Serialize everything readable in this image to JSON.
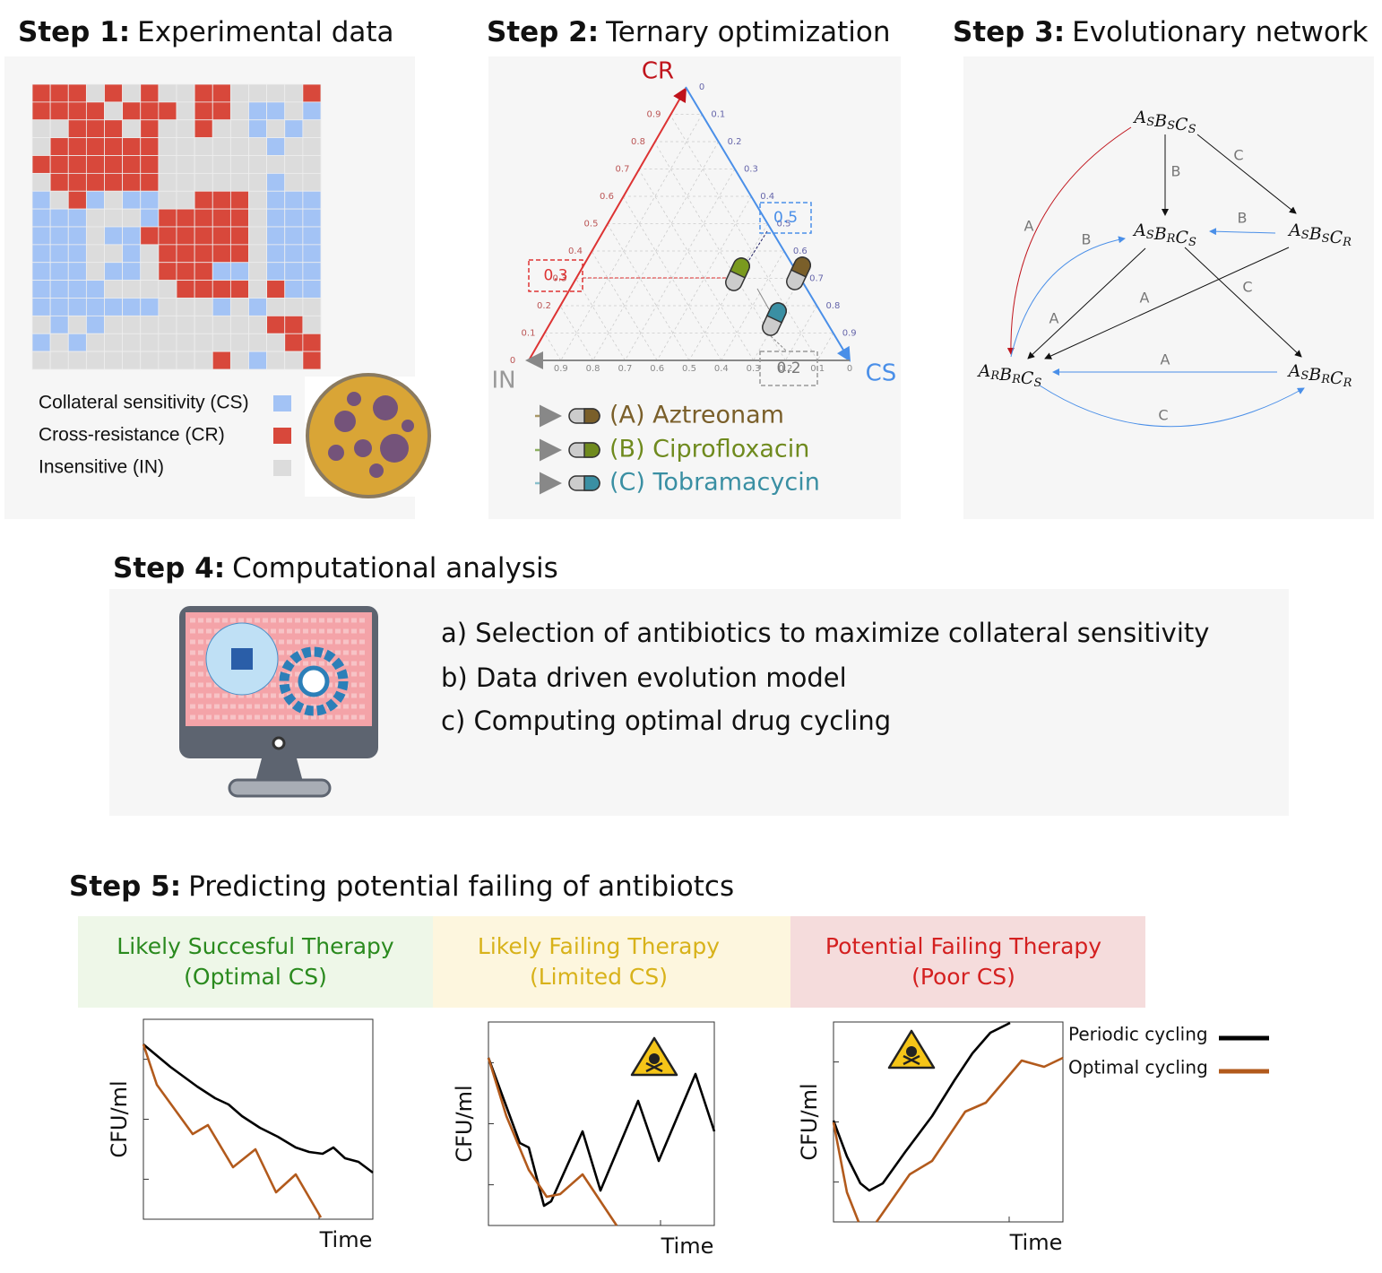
{
  "steps": [
    {
      "label": "Step 1:",
      "title": "Experimental data"
    },
    {
      "label": "Step 2:",
      "title": "Ternary optimization"
    },
    {
      "label": "Step 3:",
      "title": "Evolutionary network"
    },
    {
      "label": "Step 4:",
      "title": "Computational analysis"
    },
    {
      "label": "Step 5:",
      "title": "Predicting potential failing of antibiotcs"
    }
  ],
  "legend": [
    "Collateral sensitivity (CS)",
    "Cross-resistance (CR)",
    "Insensitive (IN)"
  ],
  "ternary": {
    "vertices": [
      "CR",
      "IN",
      "CS"
    ],
    "ticks": [
      "0",
      "0.1",
      "0.2",
      "0.3",
      "0.4",
      "0.5",
      "0.6",
      "0.7",
      "0.8",
      "0.9"
    ],
    "boxes": [
      "0.3",
      "0.5",
      "0.2"
    ]
  },
  "drugs": [
    "(A) Aztreonam",
    "(B) Ciprofloxacin",
    "(C) Tobramacycin"
  ],
  "network": {
    "nodes": [
      [
        [
          "A",
          "S"
        ],
        [
          "B",
          "S"
        ],
        [
          "C",
          "S"
        ]
      ],
      [
        [
          "A",
          "S"
        ],
        [
          "B",
          "R"
        ],
        [
          "C",
          "S"
        ]
      ],
      [
        [
          "A",
          "S"
        ],
        [
          "B",
          "S"
        ],
        [
          "C",
          "R"
        ]
      ],
      [
        [
          "A",
          "R"
        ],
        [
          "B",
          "R"
        ],
        [
          "C",
          "S"
        ]
      ],
      [
        [
          "A",
          "S"
        ],
        [
          "B",
          "R"
        ],
        [
          "C",
          "R"
        ]
      ]
    ],
    "edges": [
      "B",
      "C",
      "B",
      "A",
      "B",
      "A",
      "A",
      "C",
      "A",
      "C"
    ]
  },
  "analysis": [
    "a) Selection of antibiotics to maximize collateral sensitivity",
    "b) Data driven evolution model",
    "c) Computing optimal drug cycling"
  ],
  "outcomes": [
    {
      "title": "Likely Succesful Therapy",
      "subtitle": "(Optimal CS)"
    },
    {
      "title": "Likely Failing Therapy",
      "subtitle": "(Limited CS)"
    },
    {
      "title": "Potential Failing Therapy",
      "subtitle": "(Poor CS)"
    }
  ],
  "plots": {
    "ylabel": "CFU/ml",
    "xlabel": "Time",
    "legend": [
      "Periodic cycling",
      "Optimal cycling"
    ]
  }
}
